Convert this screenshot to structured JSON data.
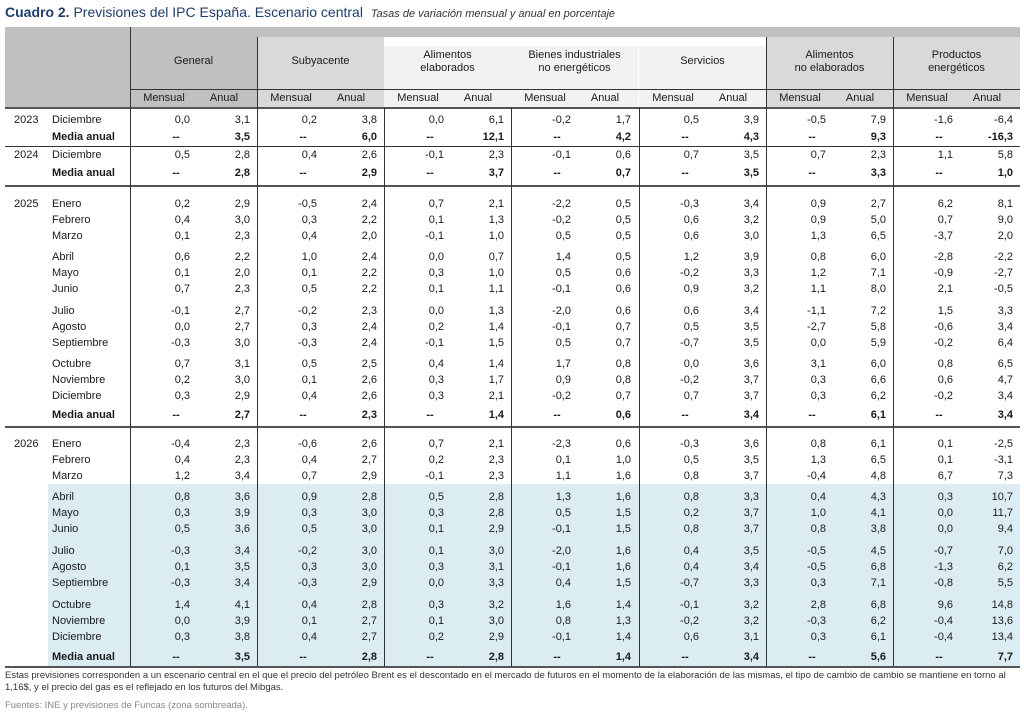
{
  "title": {
    "number": "Cuadro 2.",
    "main": "Previsiones del IPC España. Escenario central",
    "subtitle": "Tasas de variación mensual y anual  en porcentaje"
  },
  "colors": {
    "title": "#1f3e6e",
    "forecast_shade": "#dbedf3",
    "header_dark": "#c0c0c0",
    "header_mid": "#d9d9d9",
    "header_light": "#f2f2f2"
  },
  "groups": [
    {
      "label": "General"
    },
    {
      "label": "Subyacente"
    },
    {
      "label": "Alimentos elaborados"
    },
    {
      "label": "Bienes industriales no energéticos"
    },
    {
      "label": "Servicios"
    },
    {
      "label": "Alimentos no elaborados"
    },
    {
      "label": "Productos energéticos"
    }
  ],
  "group_lines": [
    [
      "",
      ""
    ],
    [
      "",
      ""
    ],
    [
      "Alimentos",
      "elaborados"
    ],
    [
      "Bienes industriales",
      "no energéticos"
    ],
    [
      "",
      ""
    ],
    [
      "Alimentos",
      "no elaborados"
    ],
    [
      "Productos",
      "energéticos"
    ]
  ],
  "subheaders": {
    "monthly": "Mensual",
    "annual": "Anual"
  },
  "rows": [
    {
      "year": "2023",
      "month": "Diciembre",
      "bold": false,
      "values": [
        "0,0",
        "3,1",
        "0,2",
        "3,8",
        "0,0",
        "6,1",
        "-0,2",
        "1,7",
        "0,5",
        "3,9",
        "-0,5",
        "7,9",
        "-1,6",
        "-6,4"
      ]
    },
    {
      "year": "",
      "month": "Media anual",
      "bold": true,
      "values": [
        "--",
        "3,5",
        "--",
        "6,0",
        "--",
        "12,1",
        "--",
        "4,2",
        "--",
        "4,3",
        "--",
        "9,3",
        "--",
        "-16,3"
      ]
    },
    {
      "year": "2024",
      "month": "Diciembre",
      "bold": false,
      "values": [
        "0,5",
        "2,8",
        "0,4",
        "2,6",
        "-0,1",
        "2,3",
        "-0,1",
        "0,6",
        "0,7",
        "3,5",
        "0,7",
        "2,3",
        "1,1",
        "5,8"
      ]
    },
    {
      "year": "",
      "month": "Media anual",
      "bold": true,
      "values": [
        "--",
        "2,8",
        "--",
        "2,9",
        "--",
        "3,7",
        "--",
        "0,7",
        "--",
        "3,5",
        "--",
        "3,3",
        "--",
        "1,0"
      ]
    },
    {
      "year": "2025",
      "month": "Enero",
      "bold": false,
      "values": [
        "0,2",
        "2,9",
        "-0,5",
        "2,4",
        "0,7",
        "2,1",
        "-2,2",
        "0,5",
        "-0,3",
        "3,4",
        "0,9",
        "2,7",
        "6,2",
        "8,1"
      ]
    },
    {
      "year": "",
      "month": "Febrero",
      "bold": false,
      "values": [
        "0,4",
        "3,0",
        "0,3",
        "2,2",
        "0,1",
        "1,3",
        "-0,2",
        "0,5",
        "0,6",
        "3,2",
        "0,9",
        "5,0",
        "0,7",
        "9,0"
      ]
    },
    {
      "year": "",
      "month": "Marzo",
      "bold": false,
      "values": [
        "0,1",
        "2,3",
        "0,4",
        "2,0",
        "-0,1",
        "1,0",
        "0,5",
        "0,5",
        "0,6",
        "3,0",
        "1,3",
        "6,5",
        "-3,7",
        "2,0"
      ]
    },
    {
      "year": "",
      "month": "Abril",
      "bold": false,
      "values": [
        "0,6",
        "2,2",
        "1,0",
        "2,4",
        "0,0",
        "0,7",
        "1,4",
        "0,5",
        "1,2",
        "3,9",
        "0,8",
        "6,0",
        "-2,8",
        "-2,2"
      ]
    },
    {
      "year": "",
      "month": "Mayo",
      "bold": false,
      "values": [
        "0,1",
        "2,0",
        "0,1",
        "2,2",
        "0,3",
        "1,0",
        "0,5",
        "0,6",
        "-0,2",
        "3,3",
        "1,2",
        "7,1",
        "-0,9",
        "-2,7"
      ]
    },
    {
      "year": "",
      "month": "Junio",
      "bold": false,
      "values": [
        "0,7",
        "2,3",
        "0,5",
        "2,2",
        "0,1",
        "1,1",
        "-0,1",
        "0,6",
        "0,9",
        "3,2",
        "1,1",
        "8,0",
        "2,1",
        "-0,5"
      ]
    },
    {
      "year": "",
      "month": "Julio",
      "bold": false,
      "values": [
        "-0,1",
        "2,7",
        "-0,2",
        "2,3",
        "0,0",
        "1,3",
        "-2,0",
        "0,6",
        "0,6",
        "3,4",
        "-1,1",
        "7,2",
        "1,5",
        "3,3"
      ]
    },
    {
      "year": "",
      "month": "Agosto",
      "bold": false,
      "values": [
        "0,0",
        "2,7",
        "0,3",
        "2,4",
        "0,2",
        "1,4",
        "-0,1",
        "0,7",
        "0,5",
        "3,5",
        "-2,7",
        "5,8",
        "-0,6",
        "3,4"
      ]
    },
    {
      "year": "",
      "month": "Septiembre",
      "bold": false,
      "values": [
        "-0,3",
        "3,0",
        "-0,3",
        "2,4",
        "-0,1",
        "1,5",
        "0,5",
        "0,7",
        "-0,7",
        "3,5",
        "0,0",
        "5,9",
        "-0,2",
        "6,4"
      ]
    },
    {
      "year": "",
      "month": "Octubre",
      "bold": false,
      "values": [
        "0,7",
        "3,1",
        "0,5",
        "2,5",
        "0,4",
        "1,4",
        "1,7",
        "0,8",
        "0,0",
        "3,6",
        "3,1",
        "6,0",
        "0,8",
        "6,5"
      ]
    },
    {
      "year": "",
      "month": "Noviembre",
      "bold": false,
      "values": [
        "0,2",
        "3,0",
        "0,1",
        "2,6",
        "0,3",
        "1,7",
        "0,9",
        "0,8",
        "-0,2",
        "3,7",
        "0,3",
        "6,6",
        "0,6",
        "4,7"
      ]
    },
    {
      "year": "",
      "month": "Diciembre",
      "bold": false,
      "values": [
        "0,3",
        "2,9",
        "0,4",
        "2,6",
        "0,3",
        "2,1",
        "-0,2",
        "0,7",
        "0,7",
        "3,7",
        "0,3",
        "6,2",
        "-0,2",
        "3,4"
      ]
    },
    {
      "year": "",
      "month": "Media anual",
      "bold": true,
      "values": [
        "--",
        "2,7",
        "--",
        "2,3",
        "--",
        "1,4",
        "--",
        "0,6",
        "--",
        "3,4",
        "--",
        "6,1",
        "--",
        "3,4"
      ]
    },
    {
      "year": "2026",
      "month": "Enero",
      "bold": false,
      "values": [
        "-0,4",
        "2,3",
        "-0,6",
        "2,6",
        "0,7",
        "2,1",
        "-2,3",
        "0,6",
        "-0,3",
        "3,6",
        "0,8",
        "6,1",
        "0,1",
        "-2,5"
      ]
    },
    {
      "year": "",
      "month": "Febrero",
      "bold": false,
      "values": [
        "0,4",
        "2,3",
        "0,4",
        "2,7",
        "0,2",
        "2,3",
        "0,1",
        "1,0",
        "0,5",
        "3,5",
        "1,3",
        "6,5",
        "0,1",
        "-3,1"
      ]
    },
    {
      "year": "",
      "month": "Marzo",
      "bold": false,
      "values": [
        "1,2",
        "3,4",
        "0,7",
        "2,9",
        "-0,1",
        "2,3",
        "1,1",
        "1,6",
        "0,8",
        "3,7",
        "-0,4",
        "4,8",
        "6,7",
        "7,3"
      ]
    },
    {
      "year": "",
      "month": "Abril",
      "bold": false,
      "values": [
        "0,8",
        "3,6",
        "0,9",
        "2,8",
        "0,5",
        "2,8",
        "1,3",
        "1,6",
        "0,8",
        "3,3",
        "0,4",
        "4,3",
        "0,3",
        "10,7"
      ]
    },
    {
      "year": "",
      "month": "Mayo",
      "bold": false,
      "values": [
        "0,3",
        "3,9",
        "0,3",
        "3,0",
        "0,3",
        "2,8",
        "0,5",
        "1,5",
        "0,2",
        "3,7",
        "1,0",
        "4,1",
        "0,0",
        "11,7"
      ]
    },
    {
      "year": "",
      "month": "Junio",
      "bold": false,
      "values": [
        "0,5",
        "3,6",
        "0,5",
        "3,0",
        "0,1",
        "2,9",
        "-0,1",
        "1,5",
        "0,8",
        "3,7",
        "0,8",
        "3,8",
        "0,0",
        "9,4"
      ]
    },
    {
      "year": "",
      "month": "Julio",
      "bold": false,
      "values": [
        "-0,3",
        "3,4",
        "-0,2",
        "3,0",
        "0,1",
        "3,0",
        "-2,0",
        "1,6",
        "0,4",
        "3,5",
        "-0,5",
        "4,5",
        "-0,7",
        "7,0"
      ]
    },
    {
      "year": "",
      "month": "Agosto",
      "bold": false,
      "values": [
        "0,1",
        "3,5",
        "0,3",
        "3,0",
        "0,3",
        "3,1",
        "-0,1",
        "1,6",
        "0,4",
        "3,4",
        "-0,5",
        "6,8",
        "-1,3",
        "6,2"
      ]
    },
    {
      "year": "",
      "month": "Septiembre",
      "bold": false,
      "values": [
        "-0,3",
        "3,4",
        "-0,3",
        "2,9",
        "0,0",
        "3,3",
        "0,4",
        "1,5",
        "-0,7",
        "3,3",
        "0,3",
        "7,1",
        "-0,8",
        "5,5"
      ]
    },
    {
      "year": "",
      "month": "Octubre",
      "bold": false,
      "values": [
        "1,4",
        "4,1",
        "0,4",
        "2,8",
        "0,3",
        "3,2",
        "1,6",
        "1,4",
        "-0,1",
        "3,2",
        "2,8",
        "6,8",
        "9,6",
        "14,8"
      ]
    },
    {
      "year": "",
      "month": "Noviembre",
      "bold": false,
      "values": [
        "0,0",
        "3,9",
        "0,1",
        "2,7",
        "0,1",
        "3,0",
        "0,8",
        "1,3",
        "-0,2",
        "3,2",
        "-0,3",
        "6,2",
        "-0,4",
        "13,6"
      ]
    },
    {
      "year": "",
      "month": "Diciembre",
      "bold": false,
      "values": [
        "0,3",
        "3,8",
        "0,4",
        "2,7",
        "0,2",
        "2,9",
        "-0,1",
        "1,4",
        "0,6",
        "3,1",
        "0,3",
        "6,1",
        "-0,4",
        "13,4"
      ]
    },
    {
      "year": "",
      "month": "Media anual",
      "bold": true,
      "values": [
        "--",
        "3,5",
        "--",
        "2,8",
        "--",
        "2,8",
        "--",
        "1,4",
        "--",
        "3,4",
        "--",
        "5,6",
        "--",
        "7,7"
      ]
    }
  ],
  "note": "Estas previsiones corresponden a un escenario central en el que el precio del petróleo Brent es el descontado en el mercado de futuros en el momento de la elaboración de las mismas, el tipo de cambio de cambio se mantiene en torno al 1,16$, y el precio del gas es el reflejado en los futuros del Mibgas.",
  "source": "Fuentes: INE y previsiones de Funcas (zona sombreada)."
}
